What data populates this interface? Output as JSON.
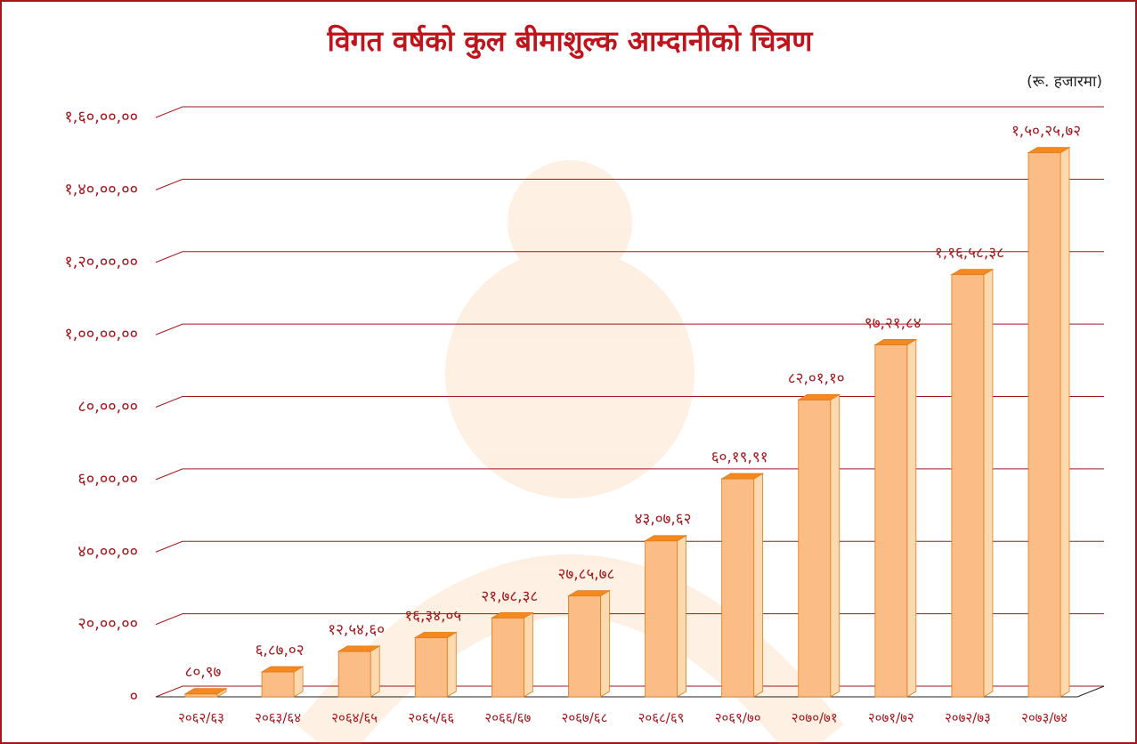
{
  "chart_data": {
    "type": "bar",
    "title": "विगत वर्षको कुल बीमाशुल्क आम्दानीको चित्रण",
    "subtitle": "(रू. हजारमा)",
    "categories": [
      "२०६२/६३",
      "२०६३/६४",
      "२०६४/६५",
      "२०६५/६६",
      "२०६६/६७",
      "२०६७/६८",
      "२०६८/६९",
      "२०६९/७०",
      "२०७०/७१",
      "२०७१/७२",
      "२०७२/७३",
      "२०७३/७४"
    ],
    "values": [
      8097,
      68702,
      125460,
      163405,
      217838,
      278578,
      430762,
      601991,
      820110,
      972184,
      1165838,
      1502572
    ],
    "value_labels": [
      "८०,९७",
      "६,८७,०२",
      "१२,५४,६०",
      "१६,३४,०५",
      "२१,७८,३८",
      "२७,८५,७८",
      "४३,०७,६२",
      "६०,१९,९१",
      "८२,०१,१०",
      "९७,२१,८४",
      "१,१६,५८,३८",
      "१,५०,२५,७२"
    ],
    "color": "#fbbd85",
    "ylim": [
      0,
      1600000
    ],
    "yticks": [
      {
        "value": 0,
        "label": "०"
      },
      {
        "value": 200000,
        "label": "२०,००,००"
      },
      {
        "value": 400000,
        "label": "४०,००,००"
      },
      {
        "value": 600000,
        "label": "६०,००,००"
      },
      {
        "value": 800000,
        "label": "८०,००,००"
      },
      {
        "value": 1000000,
        "label": "१,००,००,००"
      },
      {
        "value": 1200000,
        "label": "१,२०,००,००"
      },
      {
        "value": 1400000,
        "label": "१,४०,००,००"
      },
      {
        "value": 1600000,
        "label": "१,६०,००,००"
      }
    ],
    "grid": true
  }
}
